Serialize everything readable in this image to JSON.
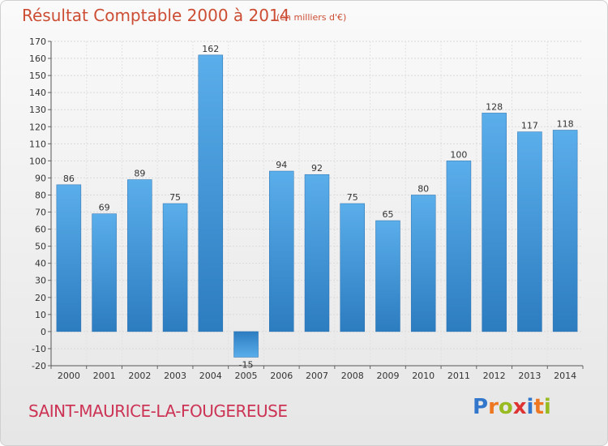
{
  "chart_data": {
    "type": "bar",
    "title": "Résultat Comptable 2000 à 2014",
    "subtitle": "(en milliers d'€)",
    "categories": [
      "2000",
      "2001",
      "2002",
      "2003",
      "2004",
      "2005",
      "2006",
      "2007",
      "2008",
      "2009",
      "2010",
      "2011",
      "2012",
      "2013",
      "2014"
    ],
    "values": [
      86,
      69,
      89,
      75,
      162,
      -15,
      94,
      92,
      75,
      65,
      80,
      100,
      128,
      117,
      118
    ],
    "ylim": [
      -20,
      170
    ],
    "yticks": [
      -20,
      -10,
      0,
      10,
      20,
      30,
      40,
      50,
      60,
      70,
      80,
      90,
      100,
      110,
      120,
      130,
      140,
      150,
      160,
      170
    ],
    "grid": true,
    "bar_color": "#4a9fdf",
    "bar_color_dark": "#2a78bb"
  },
  "place_name": "SAINT-MAURICE-LA-FOUGEREUSE",
  "logo": {
    "letters": [
      "P",
      "r",
      "o",
      "x",
      "i",
      "t",
      "i"
    ],
    "colors": [
      "#3377cc",
      "#ee7722",
      "#99bb22",
      "#dd3333",
      "#3377cc",
      "#ee7722",
      "#99bb22"
    ]
  }
}
